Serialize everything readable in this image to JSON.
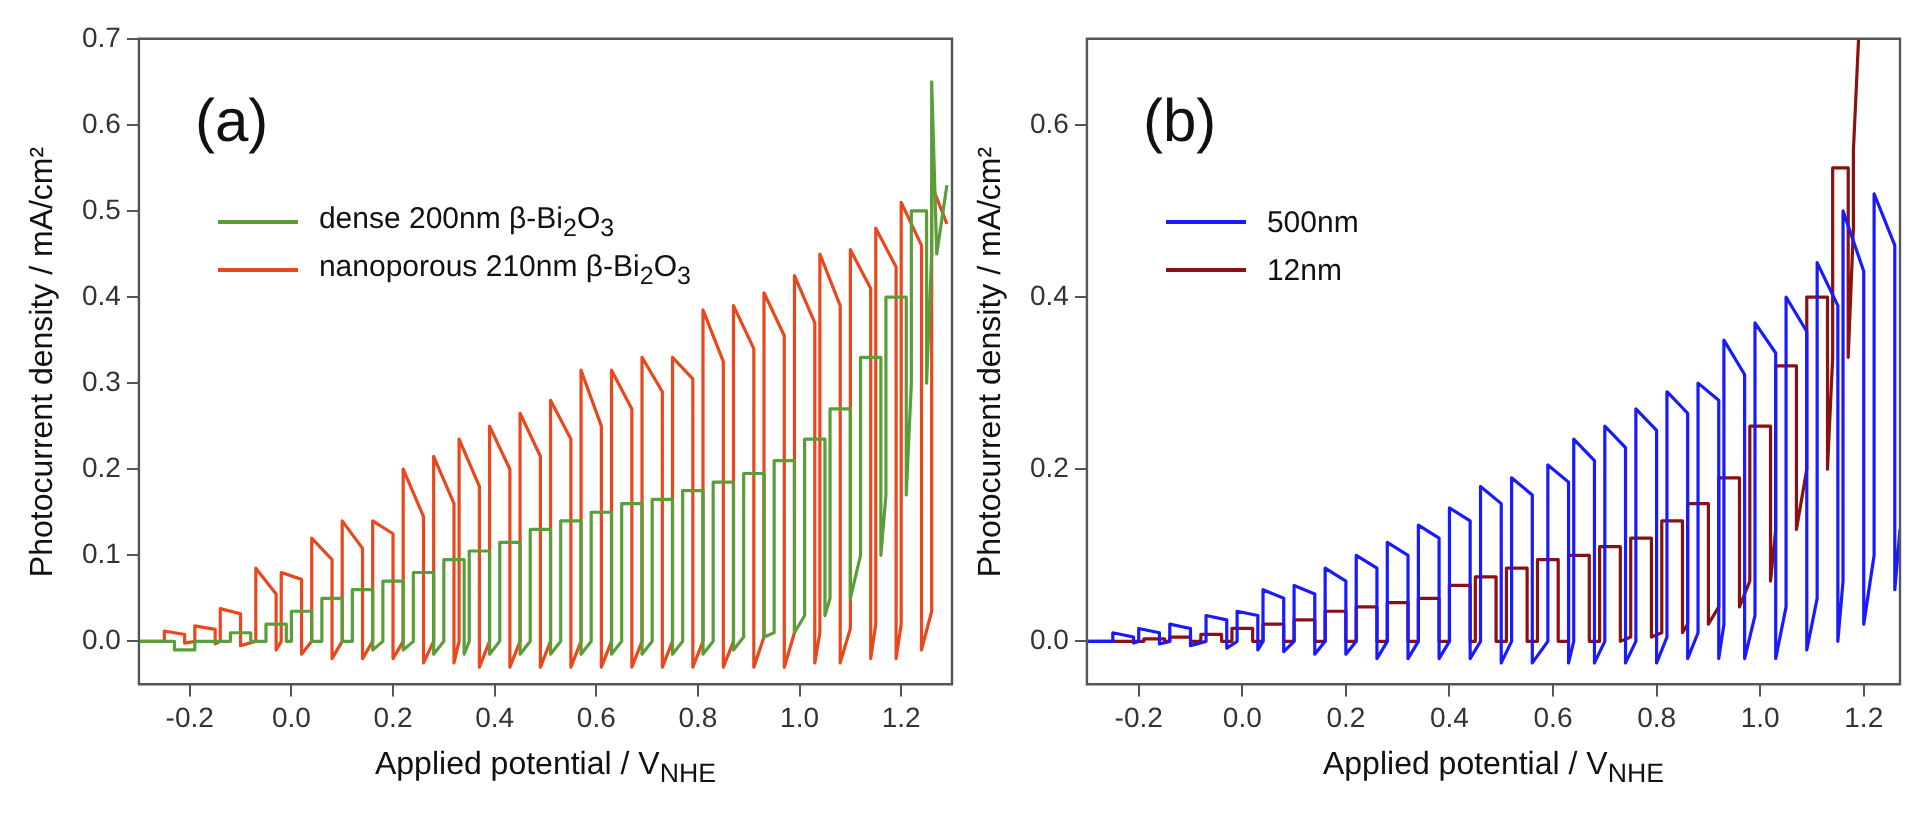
{
  "chart_data": [
    {
      "type": "line",
      "annotations": [
        "(a)"
      ],
      "xlabel": "Applied potential / V$_{NHE}$",
      "ylabel": "Photocurrent density / mA/cm²",
      "xlim": [
        -0.3,
        1.3
      ],
      "ylim": [
        -0.05,
        0.7
      ],
      "xticks": [
        {
          "value": -0.2,
          "label": "-0.2"
        },
        {
          "value": 0,
          "label": "0.0"
        },
        0.2,
        0.4,
        0.6,
        0.8,
        {
          "value": 1,
          "label": "1.0"
        },
        1.2
      ],
      "yticks": [
        {
          "value": 0,
          "label": "0.0"
        },
        0.1,
        0.2,
        0.3,
        0.4,
        0.5,
        0.6,
        0.7
      ],
      "legend": "top left",
      "marker": "none",
      "series": [
        {
          "name": "dense 200nm β-Bi$_{2}$O$_{3}$",
          "color": "#5a9e3a",
          "x": [
            -0.3,
            -0.23,
            -0.23,
            -0.19,
            -0.19,
            -0.17,
            -0.17,
            -0.13,
            -0.13,
            -0.12,
            -0.12,
            -0.08,
            -0.08,
            -0.05,
            -0.05,
            -0.01,
            -0.01,
            0,
            0,
            0.04,
            0.04,
            0.06,
            0.06,
            0.1,
            0.1,
            0.12,
            0.12,
            0.16,
            0.16,
            0.18,
            0.18,
            0.22,
            0.22,
            0.24,
            0.24,
            0.28,
            0.28,
            0.3,
            0.3,
            0.34,
            0.34,
            0.35,
            0.35,
            0.39,
            0.39,
            0.41,
            0.41,
            0.45,
            0.45,
            0.47,
            0.47,
            0.51,
            0.51,
            0.53,
            0.53,
            0.57,
            0.57,
            0.59,
            0.59,
            0.63,
            0.63,
            0.65,
            0.65,
            0.69,
            0.69,
            0.71,
            0.71,
            0.75,
            0.75,
            0.77,
            0.77,
            0.81,
            0.81,
            0.83,
            0.83,
            0.87,
            0.87,
            0.89,
            0.89,
            0.93,
            0.93,
            0.95,
            0.95,
            0.99,
            0.99,
            1.01,
            1.01,
            1.05,
            1.05,
            1.06,
            1.06,
            1.1,
            1.1,
            1.12,
            1.12,
            1.16,
            1.16,
            1.17,
            1.17,
            1.21,
            1.21,
            1.22,
            1.22,
            1.25,
            1.25,
            1.26,
            1.26,
            1.27,
            1.29
          ],
          "values": [
            0,
            0,
            -0.01,
            -0.01,
            0,
            0,
            0,
            0,
            0,
            0,
            0.01,
            0.01,
            0,
            0,
            0.02,
            0.02,
            0,
            0,
            0.035,
            0.035,
            0,
            0,
            0.05,
            0.05,
            0,
            0,
            0.06,
            0.06,
            -0.01,
            0,
            0.07,
            0.07,
            -0.01,
            0,
            0.08,
            0.08,
            -0.015,
            0,
            0.095,
            0.095,
            -0.015,
            0,
            0.105,
            0.105,
            -0.015,
            0,
            0.115,
            0.115,
            -0.015,
            0,
            0.13,
            0.13,
            -0.015,
            0,
            0.14,
            0.14,
            -0.015,
            0,
            0.15,
            0.15,
            -0.015,
            0,
            0.16,
            0.16,
            -0.015,
            0,
            0.165,
            0.165,
            -0.015,
            0,
            0.175,
            0.175,
            -0.015,
            0,
            0.185,
            0.185,
            -0.01,
            0.005,
            0.195,
            0.195,
            0.005,
            0.01,
            0.21,
            0.21,
            0.01,
            0.03,
            0.235,
            0.235,
            0.03,
            0.05,
            0.27,
            0.27,
            0.05,
            0.1,
            0.33,
            0.33,
            0.1,
            0.17,
            0.4,
            0.4,
            0.17,
            0.3,
            0.5,
            0.5,
            0.3,
            0.45,
            0.65,
            0.45,
            0.53
          ]
        },
        {
          "name": "nanoporous 210nm β-Bi$_{2}$O$_{3}$",
          "color": "#e8481c",
          "x": [
            -0.3,
            -0.25,
            -0.25,
            -0.21,
            -0.21,
            -0.19,
            -0.19,
            -0.15,
            -0.15,
            -0.14,
            -0.14,
            -0.1,
            -0.1,
            -0.07,
            -0.07,
            -0.03,
            -0.03,
            -0.02,
            -0.02,
            0.02,
            0.02,
            0.04,
            0.04,
            0.08,
            0.08,
            0.1,
            0.1,
            0.14,
            0.14,
            0.16,
            0.16,
            0.2,
            0.2,
            0.22,
            0.22,
            0.26,
            0.26,
            0.28,
            0.28,
            0.32,
            0.32,
            0.33,
            0.33,
            0.37,
            0.37,
            0.39,
            0.39,
            0.43,
            0.43,
            0.45,
            0.45,
            0.49,
            0.49,
            0.51,
            0.51,
            0.55,
            0.55,
            0.57,
            0.57,
            0.61,
            0.61,
            0.63,
            0.63,
            0.67,
            0.67,
            0.69,
            0.69,
            0.73,
            0.73,
            0.75,
            0.75,
            0.79,
            0.79,
            0.81,
            0.81,
            0.85,
            0.85,
            0.87,
            0.87,
            0.91,
            0.91,
            0.93,
            0.93,
            0.97,
            0.97,
            0.99,
            0.99,
            1.03,
            1.03,
            1.04,
            1.04,
            1.08,
            1.08,
            1.1,
            1.1,
            1.14,
            1.14,
            1.15,
            1.15,
            1.19,
            1.19,
            1.2,
            1.2,
            1.24,
            1.24,
            1.26,
            1.26,
            1.29
          ],
          "values": [
            0,
            0,
            0.012,
            0.008,
            -0.002,
            0,
            0.018,
            0.014,
            -0.003,
            0,
            0.038,
            0.032,
            -0.005,
            0,
            0.085,
            0.055,
            -0.01,
            0,
            0.08,
            0.072,
            -0.015,
            0,
            0.12,
            0.095,
            -0.02,
            0,
            0.14,
            0.108,
            -0.02,
            0,
            0.14,
            0.125,
            -0.02,
            0,
            0.2,
            0.145,
            -0.025,
            0,
            0.215,
            0.16,
            -0.025,
            0,
            0.235,
            0.18,
            -0.03,
            0,
            0.25,
            0.2,
            -0.03,
            0,
            0.265,
            0.215,
            -0.03,
            0,
            0.28,
            0.235,
            -0.03,
            0,
            0.315,
            0.25,
            -0.03,
            0,
            0.315,
            0.27,
            -0.03,
            0,
            0.33,
            0.29,
            -0.03,
            0,
            0.33,
            0.305,
            -0.03,
            0,
            0.385,
            0.325,
            -0.03,
            0,
            0.39,
            0.34,
            -0.03,
            0.005,
            0.405,
            0.355,
            -0.03,
            0.01,
            0.425,
            0.37,
            -0.025,
            0.01,
            0.45,
            0.39,
            -0.025,
            0.015,
            0.455,
            0.41,
            -0.02,
            0.02,
            0.48,
            0.435,
            -0.02,
            0.02,
            0.51,
            0.46,
            -0.01,
            0.035,
            0.53,
            0.485
          ]
        }
      ]
    },
    {
      "type": "line",
      "annotations": [
        "(b)"
      ],
      "xlabel": "Applied potential / V$_{NHE}$",
      "ylabel": "Photocurrent density / mA/cm²",
      "xlim": [
        -0.3,
        1.27
      ],
      "ylim": [
        -0.05,
        0.7
      ],
      "xticks": [
        {
          "value": -0.2,
          "label": "-0.2"
        },
        {
          "value": 0,
          "label": "0.0"
        },
        0.2,
        0.4,
        0.6,
        0.8,
        {
          "value": 1,
          "label": "1.0"
        },
        1.2
      ],
      "yticks": [
        {
          "value": 0,
          "label": "0.0"
        },
        0.2,
        0.4,
        0.6
      ],
      "legend": "top left",
      "marker": "none",
      "series": [
        {
          "name": "500nm",
          "color": "#1a1aff",
          "x": [
            -0.3,
            -0.25,
            -0.25,
            -0.21,
            -0.21,
            -0.2,
            -0.2,
            -0.16,
            -0.16,
            -0.14,
            -0.14,
            -0.1,
            -0.1,
            -0.07,
            -0.07,
            -0.03,
            -0.03,
            -0.01,
            -0.01,
            0.03,
            0.03,
            0.04,
            0.04,
            0.08,
            0.08,
            0.1,
            0.1,
            0.14,
            0.14,
            0.16,
            0.16,
            0.2,
            0.2,
            0.22,
            0.22,
            0.26,
            0.26,
            0.28,
            0.28,
            0.32,
            0.32,
            0.34,
            0.34,
            0.38,
            0.38,
            0.4,
            0.4,
            0.44,
            0.44,
            0.46,
            0.46,
            0.5,
            0.5,
            0.52,
            0.52,
            0.56,
            0.56,
            0.59,
            0.59,
            0.63,
            0.63,
            0.64,
            0.64,
            0.68,
            0.68,
            0.7,
            0.7,
            0.74,
            0.74,
            0.76,
            0.76,
            0.8,
            0.8,
            0.82,
            0.82,
            0.86,
            0.86,
            0.88,
            0.88,
            0.92,
            0.92,
            0.93,
            0.93,
            0.97,
            0.97,
            0.99,
            0.99,
            1.03,
            1.03,
            1.05,
            1.05,
            1.09,
            1.09,
            1.11,
            1.11,
            1.15,
            1.15,
            1.16,
            1.16,
            1.2,
            1.2,
            1.22,
            1.22,
            1.26,
            1.26,
            1.27
          ],
          "values": [
            0,
            0,
            0.01,
            0.005,
            -0.002,
            0,
            0.015,
            0.01,
            -0.003,
            0,
            0.02,
            0.015,
            -0.005,
            0,
            0.03,
            0.025,
            -0.008,
            0,
            0.035,
            0.03,
            -0.01,
            0,
            0.06,
            0.05,
            -0.012,
            0,
            0.065,
            0.055,
            -0.015,
            0,
            0.085,
            0.07,
            -0.015,
            0,
            0.1,
            0.085,
            -0.02,
            0,
            0.115,
            0.1,
            -0.02,
            0,
            0.135,
            0.12,
            -0.02,
            0,
            0.155,
            0.14,
            -0.02,
            0,
            0.18,
            0.16,
            -0.025,
            0,
            0.19,
            0.17,
            -0.025,
            0,
            0.205,
            0.185,
            -0.025,
            0,
            0.235,
            0.21,
            -0.025,
            0,
            0.25,
            0.225,
            -0.025,
            0,
            0.27,
            0.245,
            -0.025,
            0.005,
            0.29,
            0.265,
            -0.02,
            0.01,
            0.3,
            0.28,
            -0.02,
            0.02,
            0.35,
            0.31,
            -0.02,
            0.03,
            0.37,
            0.335,
            -0.02,
            0.04,
            0.4,
            0.36,
            -0.01,
            0.05,
            0.44,
            0.39,
            0,
            0.07,
            0.5,
            0.43,
            0.02,
            0.1,
            0.52,
            0.46,
            0.06,
            0.13
          ]
        },
        {
          "name": "12nm",
          "color": "#8b1010",
          "x": [
            -0.3,
            -0.25,
            -0.25,
            -0.21,
            -0.21,
            -0.19,
            -0.19,
            -0.15,
            -0.15,
            -0.14,
            -0.14,
            -0.1,
            -0.1,
            -0.08,
            -0.08,
            -0.04,
            -0.04,
            -0.02,
            -0.02,
            0.02,
            0.02,
            0.04,
            0.04,
            0.08,
            0.08,
            0.1,
            0.1,
            0.14,
            0.14,
            0.16,
            0.16,
            0.2,
            0.2,
            0.22,
            0.22,
            0.26,
            0.26,
            0.28,
            0.28,
            0.32,
            0.32,
            0.34,
            0.34,
            0.38,
            0.38,
            0.4,
            0.4,
            0.44,
            0.44,
            0.45,
            0.45,
            0.49,
            0.49,
            0.51,
            0.51,
            0.55,
            0.55,
            0.57,
            0.57,
            0.61,
            0.61,
            0.63,
            0.63,
            0.67,
            0.67,
            0.69,
            0.69,
            0.73,
            0.73,
            0.75,
            0.75,
            0.79,
            0.79,
            0.81,
            0.81,
            0.85,
            0.85,
            0.86,
            0.86,
            0.9,
            0.9,
            0.92,
            0.92,
            0.96,
            0.96,
            0.98,
            0.98,
            1.02,
            1.02,
            1.03,
            1.03,
            1.07,
            1.07,
            1.09,
            1.09,
            1.13,
            1.13,
            1.14,
            1.14,
            1.17,
            1.17,
            1.18,
            1.18,
            1.19
          ],
          "values": [
            0,
            0,
            0,
            0,
            0,
            0,
            0.003,
            0.003,
            0,
            0,
            0.005,
            0.005,
            0,
            0,
            0.008,
            0.008,
            0,
            0,
            0.015,
            0.015,
            0,
            0,
            0.02,
            0.02,
            0,
            0,
            0.025,
            0.025,
            0,
            0,
            0.035,
            0.035,
            0,
            0,
            0.04,
            0.04,
            0,
            0,
            0.045,
            0.045,
            0,
            0,
            0.05,
            0.05,
            0,
            0,
            0.065,
            0.065,
            0,
            0,
            0.075,
            0.075,
            0,
            0,
            0.085,
            0.085,
            0,
            0,
            0.095,
            0.095,
            0,
            0,
            0.1,
            0.1,
            0,
            0,
            0.11,
            0.11,
            0,
            0.005,
            0.12,
            0.12,
            0.005,
            0.01,
            0.14,
            0.14,
            0.01,
            0.02,
            0.16,
            0.16,
            0.02,
            0.04,
            0.19,
            0.19,
            0.04,
            0.07,
            0.25,
            0.25,
            0.07,
            0.13,
            0.32,
            0.32,
            0.13,
            0.2,
            0.4,
            0.4,
            0.2,
            0.33,
            0.55,
            0.55,
            0.33,
            0.48,
            0.57,
            0.7
          ]
        }
      ]
    }
  ]
}
